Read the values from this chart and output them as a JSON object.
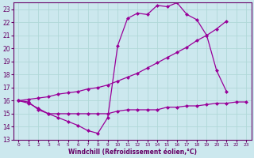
{
  "bg_color": "#cce8ee",
  "line_color": "#990099",
  "grid_color": "#aacccc",
  "xlabel": "Windchill (Refroidissement éolien,°C)",
  "xlim": [
    -0.5,
    23.5
  ],
  "ylim": [
    13,
    23.5
  ],
  "yticks": [
    13,
    14,
    15,
    16,
    17,
    18,
    19,
    20,
    21,
    22,
    23
  ],
  "xticks": [
    0,
    1,
    2,
    3,
    4,
    5,
    6,
    7,
    8,
    9,
    10,
    11,
    12,
    13,
    14,
    15,
    16,
    17,
    18,
    19,
    20,
    21,
    22,
    23
  ],
  "line1_x": [
    0,
    1,
    2,
    3,
    4,
    5,
    6,
    7,
    8,
    9,
    10,
    11,
    12,
    13,
    14,
    15,
    16,
    17,
    18,
    19,
    20,
    21,
    22,
    23
  ],
  "line1_y": [
    16.0,
    15.9,
    15.3,
    15.0,
    14.7,
    14.4,
    14.1,
    13.7,
    13.5,
    14.7,
    20.2,
    22.3,
    22.7,
    22.6,
    23.3,
    23.2,
    23.5,
    22.6,
    22.2,
    21.0,
    18.3,
    16.7,
    null,
    null
  ],
  "line2_x": [
    0,
    1,
    2,
    3,
    4,
    5,
    6,
    7,
    8,
    9,
    10,
    11,
    12,
    13,
    14,
    15,
    16,
    17,
    18,
    19,
    20,
    21,
    22,
    23
  ],
  "line2_y": [
    16.0,
    16.1,
    16.2,
    16.3,
    16.5,
    16.6,
    16.7,
    16.9,
    17.0,
    17.2,
    17.5,
    17.8,
    18.1,
    18.5,
    18.9,
    19.3,
    19.7,
    20.1,
    20.6,
    21.0,
    21.5,
    22.1,
    null,
    null
  ],
  "line3_x": [
    0,
    1,
    2,
    3,
    4,
    5,
    6,
    7,
    8,
    9,
    10,
    11,
    12,
    13,
    14,
    15,
    16,
    17,
    18,
    19,
    20,
    21,
    22,
    23
  ],
  "line3_y": [
    16.0,
    15.8,
    15.4,
    15.0,
    15.0,
    15.0,
    15.0,
    15.0,
    15.0,
    15.0,
    15.2,
    15.3,
    15.3,
    15.3,
    15.3,
    15.5,
    15.5,
    15.6,
    15.6,
    15.7,
    15.8,
    15.8,
    15.9,
    15.9
  ]
}
